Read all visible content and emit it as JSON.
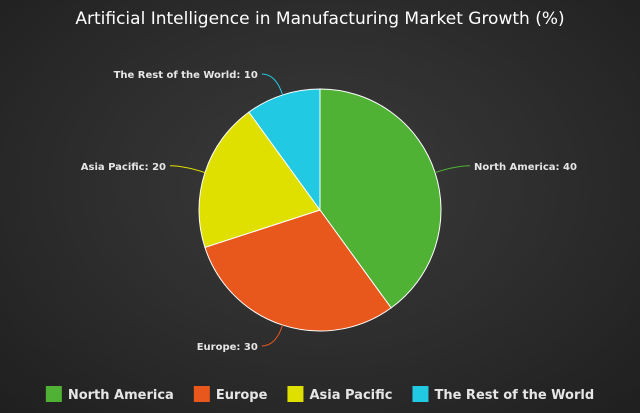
{
  "chart_data": {
    "type": "pie",
    "title": "Artificial Intelligence in Manufacturing Market Growth (%)",
    "unit": "%",
    "categories": [
      "North America",
      "Europe",
      "Asia Pacific",
      "The Rest of the World"
    ],
    "values": [
      40,
      30,
      20,
      10
    ],
    "colors": [
      "#4fb234",
      "#e8571c",
      "#dfe000",
      "#22c9e3"
    ],
    "data_labels": [
      "North America: 40",
      "Europe: 30",
      "Asia Pacific: 20",
      "The Rest of the World: 10"
    ],
    "start_angle_deg": 0,
    "direction": "clockwise",
    "legend": {
      "position": "bottom",
      "entries": [
        "North America",
        "Europe",
        "Asia Pacific",
        "The Rest of the World"
      ]
    },
    "background": "#2c2c2c"
  }
}
